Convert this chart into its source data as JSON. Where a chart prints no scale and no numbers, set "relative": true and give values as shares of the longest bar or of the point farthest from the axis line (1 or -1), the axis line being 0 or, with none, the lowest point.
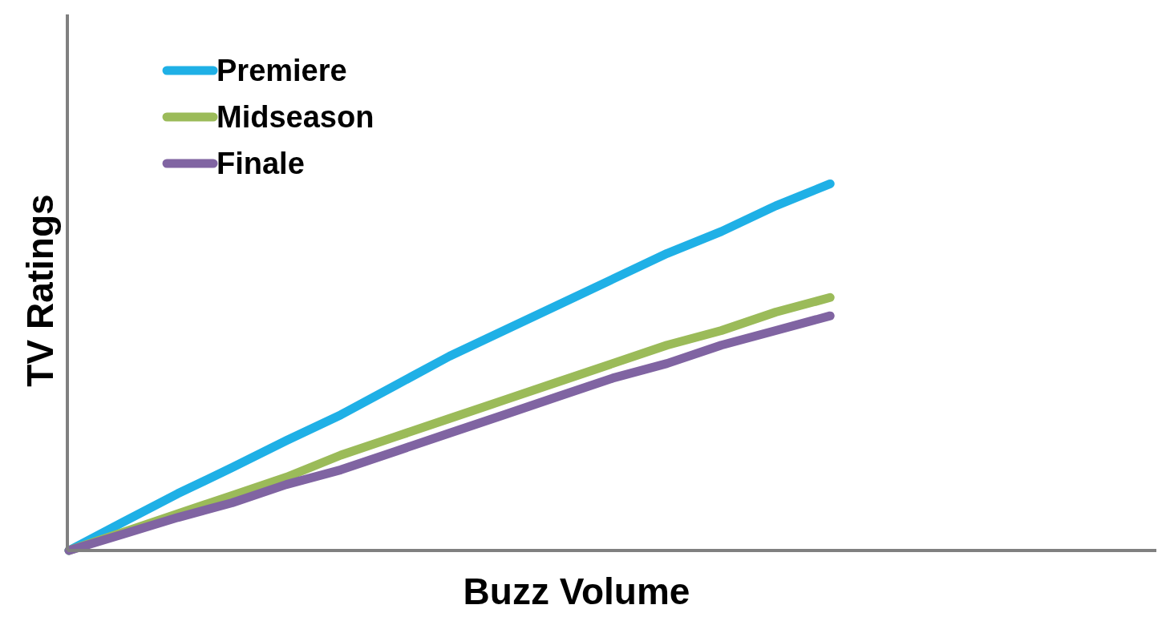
{
  "chart_data": {
    "type": "line",
    "relative": true,
    "xlabel": "Buzz Volume",
    "ylabel": "TV Ratings",
    "legend": "top left",
    "categories": [
      null,
      null,
      null,
      null,
      null,
      null,
      null,
      null,
      null,
      null,
      null,
      null,
      null,
      null,
      null,
      null,
      null,
      null,
      null,
      null,
      null
    ],
    "series": [
      {
        "name": "Premiere",
        "color": "#1fb0e6",
        "values": [
          0,
          0.078,
          0.155,
          0.226,
          0.3,
          0.37,
          0.45,
          0.53,
          0.6,
          0.67,
          0.74,
          0.81,
          0.87,
          0.94,
          1,
          null,
          null,
          null,
          null,
          null,
          null
        ]
      },
      {
        "name": "Midseason",
        "color": "#9bbb59",
        "values": [
          0,
          0.05,
          0.1,
          0.15,
          0.2,
          0.26,
          0.31,
          0.36,
          0.41,
          0.46,
          0.51,
          0.56,
          0.6,
          0.65,
          0.69,
          null,
          null,
          null,
          null,
          null,
          null
        ]
      },
      {
        "name": "Finale",
        "color": "#8064a2",
        "values": [
          0,
          0.045,
          0.09,
          0.13,
          0.18,
          0.22,
          0.27,
          0.32,
          0.37,
          0.42,
          0.47,
          0.51,
          0.56,
          0.6,
          0.64,
          null,
          null,
          null,
          null,
          null,
          null
        ]
      }
    ]
  }
}
